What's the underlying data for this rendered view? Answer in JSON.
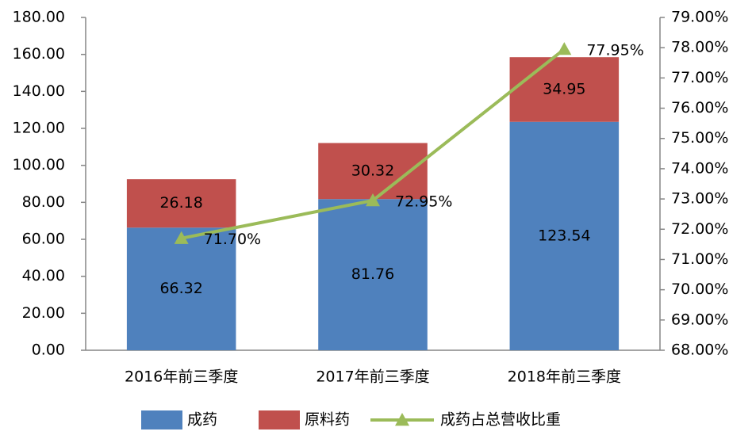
{
  "chart_data": {
    "type": "bar",
    "stacked": true,
    "categories": [
      "2016年前三季度",
      "2017年前三季度",
      "2018年前三季度"
    ],
    "series": [
      {
        "name": "成药",
        "color": "#4f81bd",
        "values": [
          66.32,
          81.76,
          123.54
        ]
      },
      {
        "name": "原料药",
        "color": "#c0504d",
        "values": [
          26.18,
          30.32,
          34.95
        ]
      },
      {
        "name": "成药占总营收比重",
        "color": "#9bbb59",
        "type": "line",
        "axis": "y2",
        "marker": "triangle",
        "values": [
          71.7,
          72.95,
          77.95
        ],
        "value_labels": [
          "71.70%",
          "72.95%",
          "77.95%"
        ]
      }
    ],
    "ylim": [
      0,
      180
    ],
    "yticks": [
      {
        "value": 0,
        "label": "0.00"
      },
      {
        "value": 20,
        "label": "20.00"
      },
      {
        "value": 40,
        "label": "40.00"
      },
      {
        "value": 60,
        "label": "60.00"
      },
      {
        "value": 80,
        "label": "80.00"
      },
      {
        "value": 100,
        "label": "100.00"
      },
      {
        "value": 120,
        "label": "120.00"
      },
      {
        "value": 140,
        "label": "140.00"
      },
      {
        "value": 160,
        "label": "160.00"
      },
      {
        "value": 180,
        "label": "180.00"
      }
    ],
    "y2lim": [
      68,
      79
    ],
    "y2ticks": [
      {
        "value": 68,
        "label": "68.00%"
      },
      {
        "value": 69,
        "label": "69.00%"
      },
      {
        "value": 70,
        "label": "70.00%"
      },
      {
        "value": 71,
        "label": "71.00%"
      },
      {
        "value": 72,
        "label": "72.00%"
      },
      {
        "value": 73,
        "label": "73.00%"
      },
      {
        "value": 74,
        "label": "74.00%"
      },
      {
        "value": 75,
        "label": "75.00%"
      },
      {
        "value": 76,
        "label": "76.00%"
      },
      {
        "value": 77,
        "label": "77.00%"
      },
      {
        "value": 78,
        "label": "78.00%"
      },
      {
        "value": 79,
        "label": "79.00%"
      }
    ],
    "grid": false,
    "legend": "bottom"
  }
}
